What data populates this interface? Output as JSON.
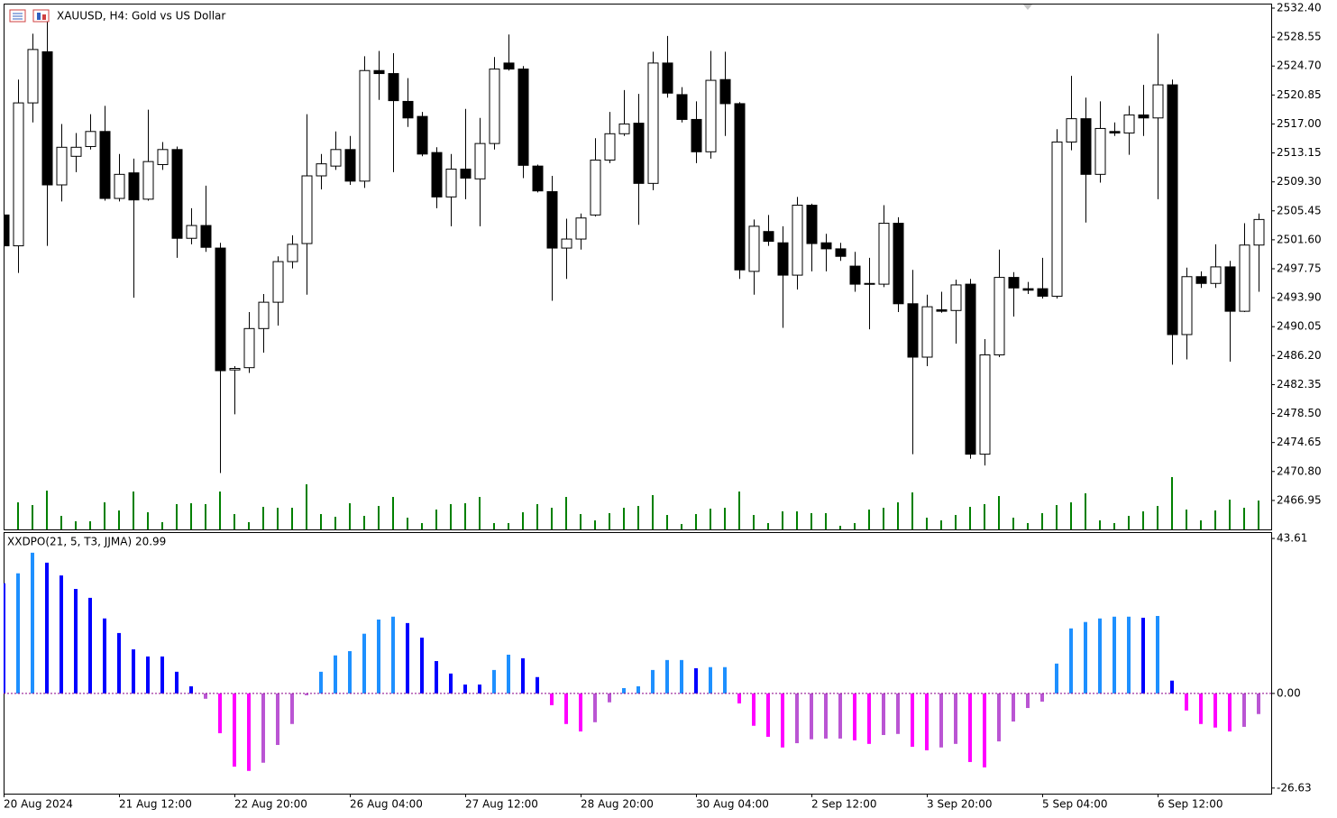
{
  "chart_data": [
    {
      "type": "candlestick",
      "title": "XAUUSD, H4:  Gold vs US Dollar",
      "categories": [
        "20 Aug 2024",
        null,
        null,
        null,
        null,
        null,
        null,
        null,
        "21 Aug 12:00",
        null,
        null,
        null,
        null,
        null,
        null,
        null,
        "22 Aug 20:00",
        null,
        null,
        null,
        null,
        null,
        null,
        null,
        "26 Aug 04:00",
        null,
        null,
        null,
        null,
        null,
        null,
        null,
        "27 Aug 12:00",
        null,
        null,
        null,
        null,
        null,
        null,
        null,
        "28 Aug 20:00",
        null,
        null,
        null,
        null,
        null,
        null,
        null,
        "30 Aug 04:00",
        null,
        null,
        null,
        null,
        null,
        null,
        null,
        "2 Sep 12:00",
        null,
        null,
        null,
        null,
        null,
        null,
        null,
        "3 Sep 20:00",
        null,
        null,
        null,
        null,
        null,
        null,
        null,
        "5 Sep 04:00",
        null,
        null,
        null,
        null,
        null,
        null,
        null,
        "6 Sep 12:00",
        null,
        null,
        null,
        null,
        null,
        null,
        null
      ],
      "open": [
        2504.9,
        2500.8,
        2519.8,
        2526.6,
        2508.9,
        2512.7,
        2514.0,
        2516.0,
        2507.1,
        2510.5,
        2507.0,
        2511.6,
        2513.6,
        2501.8,
        2503.5,
        2500.5,
        2484.3,
        2484.6,
        2489.8,
        2493.3,
        2498.7,
        2501.1,
        2510.1,
        2511.4,
        2513.6,
        2509.4,
        2524.1,
        2523.7,
        2520.0,
        2518.0,
        2513.2,
        2507.3,
        2511.0,
        2509.7,
        2514.4,
        2525.1,
        2524.3,
        2511.4,
        2508.0,
        2500.5,
        2501.7,
        2504.9,
        2512.2,
        2515.7,
        2517.1,
        2509.1,
        2525.1,
        2520.9,
        2517.6,
        2513.3,
        2522.9,
        2519.7,
        2497.4,
        2502.7,
        2501.2,
        2496.9,
        2506.2,
        2501.2,
        2500.4,
        2498.1,
        2495.8,
        2495.7,
        2503.8,
        2493.1,
        2486.0,
        2492.3,
        2492.2,
        2495.7,
        2473.1,
        2486.3,
        2496.6,
        2495.1,
        2495.1,
        2494.1,
        2514.6,
        2517.7,
        2510.3,
        2516.0,
        2515.8,
        2518.2,
        2517.8,
        2522.2,
        2489.0,
        2496.7,
        2495.8,
        2498.0,
        2492.1,
        2500.9
      ],
      "high": [
        2505.8,
        2522.9,
        2529.0,
        2530.8,
        2517.0,
        2515.8,
        2518.3,
        2519.4,
        2513.0,
        2512.4,
        2518.9,
        2514.6,
        2514.0,
        2505.8,
        2508.8,
        2501.2,
        2484.8,
        2492.0,
        2494.4,
        2499.4,
        2502.2,
        2518.3,
        2513.0,
        2516.0,
        2515.4,
        2526.0,
        2526.7,
        2526.4,
        2523.1,
        2518.6,
        2513.9,
        2513.0,
        2519.0,
        2517.8,
        2525.9,
        2528.9,
        2524.7,
        2511.6,
        2510.1,
        2504.4,
        2505.1,
        2515.1,
        2518.6,
        2521.5,
        2521.0,
        2526.6,
        2528.7,
        2521.9,
        2520.0,
        2526.7,
        2526.6,
        2519.9,
        2504.3,
        2504.9,
        2503.4,
        2507.3,
        2506.4,
        2502.4,
        2501.2,
        2500.0,
        2499.2,
        2506.2,
        2504.6,
        2497.6,
        2494.3,
        2494.7,
        2496.3,
        2496.4,
        2488.4,
        2500.3,
        2497.3,
        2496.0,
        2499.2,
        2516.3,
        2523.4,
        2520.5,
        2520.0,
        2517.2,
        2519.4,
        2522.2,
        2529.0,
        2522.9,
        2497.9,
        2497.4,
        2501.0,
        2498.8,
        2503.8,
        2505.1
      ],
      "low": [
        2500.4,
        2497.2,
        2517.2,
        2500.8,
        2506.7,
        2510.6,
        2513.6,
        2506.8,
        2506.7,
        2493.9,
        2506.8,
        2510.9,
        2499.2,
        2501.0,
        2500.0,
        2470.6,
        2478.4,
        2483.9,
        2486.6,
        2490.2,
        2497.8,
        2494.3,
        2508.3,
        2510.9,
        2508.9,
        2508.5,
        2520.2,
        2510.6,
        2516.6,
        2512.7,
        2505.8,
        2503.4,
        2507.0,
        2503.4,
        2513.6,
        2524.1,
        2509.8,
        2507.9,
        2493.5,
        2496.4,
        2500.3,
        2504.7,
        2511.8,
        2515.4,
        2503.6,
        2508.2,
        2520.5,
        2517.2,
        2511.8,
        2512.4,
        2515.4,
        2496.4,
        2494.3,
        2500.8,
        2489.9,
        2495.0,
        2497.4,
        2497.4,
        2498.8,
        2494.7,
        2489.7,
        2495.3,
        2492.0,
        2473.1,
        2484.8,
        2491.9,
        2487.8,
        2472.5,
        2471.6,
        2486.0,
        2491.4,
        2494.4,
        2493.8,
        2493.8,
        2513.5,
        2503.9,
        2509.2,
        2515.4,
        2512.9,
        2515.4,
        2507.0,
        2485.0,
        2485.7,
        2495.2,
        2495.2,
        2485.4,
        2492.0,
        2494.7
      ],
      "close": [
        2500.8,
        2519.8,
        2526.9,
        2508.9,
        2513.9,
        2513.9,
        2516.0,
        2507.1,
        2510.3,
        2506.9,
        2512.0,
        2513.6,
        2501.8,
        2503.5,
        2500.6,
        2484.2,
        2484.5,
        2489.8,
        2493.3,
        2498.7,
        2501.0,
        2510.1,
        2511.7,
        2513.6,
        2509.4,
        2524.1,
        2523.7,
        2520.1,
        2517.8,
        2513.0,
        2507.3,
        2511.0,
        2509.8,
        2514.4,
        2524.3,
        2524.3,
        2511.5,
        2508.1,
        2500.5,
        2501.7,
        2504.5,
        2512.2,
        2515.7,
        2517.0,
        2509.1,
        2525.1,
        2521.1,
        2517.6,
        2513.3,
        2522.8,
        2519.7,
        2497.6,
        2503.4,
        2501.4,
        2496.9,
        2506.2,
        2501.1,
        2500.4,
        2499.4,
        2495.7,
        2495.7,
        2503.8,
        2493.1,
        2486.0,
        2492.7,
        2492.1,
        2495.6,
        2473.1,
        2486.3,
        2496.6,
        2495.2,
        2494.9,
        2494.1,
        2514.6,
        2517.7,
        2510.3,
        2516.4,
        2515.8,
        2518.2,
        2517.8,
        2522.2,
        2489.0,
        2496.7,
        2495.8,
        2498.0,
        2492.1,
        2500.9,
        2504.3
      ],
      "volumes": [
        null,
        30,
        27,
        43,
        15,
        9,
        9,
        30,
        21,
        42,
        19,
        8,
        28,
        29,
        28,
        42,
        17,
        8,
        25,
        24,
        24,
        50,
        17,
        14,
        29,
        15,
        26,
        36,
        13,
        7,
        22,
        28,
        29,
        36,
        7,
        7,
        19,
        28,
        24,
        36,
        17,
        10,
        18,
        24,
        26,
        38,
        16,
        6,
        17,
        23,
        24,
        42,
        16,
        7,
        20,
        20,
        18,
        18,
        4,
        7,
        22,
        24,
        30,
        41,
        13,
        10,
        16,
        25,
        28,
        37,
        13,
        7,
        18,
        27,
        30,
        40,
        10,
        7,
        15,
        20,
        26,
        58,
        22,
        10,
        21,
        33,
        24,
        32
      ],
      "volume_lim": [
        0,
        100
      ],
      "up_color": "#ffffff",
      "down_color": "#000000",
      "wick_color": "#000000",
      "volume_color": "#008000",
      "ylim": [
        2463.1,
        2533.0
      ],
      "yticks": [
        {
          "value": 2532.4,
          "label": "2532.40"
        },
        2528.55,
        {
          "value": 2524.7,
          "label": "2524.70"
        },
        2520.85,
        {
          "value": 2517,
          "label": "2517.00"
        },
        2513.15,
        {
          "value": 2509.3,
          "label": "2509.30"
        },
        2505.45,
        {
          "value": 2501.6,
          "label": "2501.60"
        },
        2497.75,
        {
          "value": 2493.9,
          "label": "2493.90"
        },
        2490.05,
        {
          "value": 2486.2,
          "label": "2486.20"
        },
        2482.35,
        {
          "value": 2478.5,
          "label": "2478.50"
        },
        2474.65,
        {
          "value": 2470.8,
          "label": "2470.80"
        },
        2466.95
      ]
    },
    {
      "type": "bar",
      "title": "XXDPO(21, 5, T3, JJMA) 20.99",
      "values": [
        31.0,
        33.8,
        39.6,
        36.8,
        33.2,
        29.4,
        26.9,
        21.1,
        17.0,
        12.4,
        10.4,
        10.4,
        6.1,
        2.0,
        -1.5,
        -11.2,
        -20.6,
        -21.8,
        -19.5,
        -14.5,
        -8.6,
        -0.5,
        6.1,
        10.7,
        11.9,
        16.8,
        20.8,
        21.6,
        19.8,
        15.7,
        9.1,
        5.6,
        2.5,
        2.5,
        6.6,
        10.9,
        9.9,
        4.6,
        -3.3,
        -8.6,
        -10.7,
        -8.1,
        -2.5,
        1.5,
        2.0,
        6.6,
        9.4,
        9.4,
        7.1,
        7.4,
        7.4,
        -2.8,
        -9.1,
        -12.2,
        -15.2,
        -14.0,
        -12.9,
        -12.7,
        -12.7,
        -13.2,
        -14.2,
        -11.7,
        -11.4,
        -15.0,
        -16.0,
        -15.2,
        -14.2,
        -19.3,
        -20.8,
        -13.5,
        -7.9,
        -4.1,
        -2.3,
        8.4,
        18.3,
        20.1,
        21.1,
        21.6,
        21.6,
        21.3,
        21.8,
        3.6,
        -4.8,
        -8.6,
        -9.6,
        -10.7,
        -9.4,
        -5.8
      ],
      "colors": [
        "#0000ff",
        "#1e90ff",
        "#1e90ff",
        "#0000ff",
        "#0000ff",
        "#0000ff",
        "#0000ff",
        "#0000ff",
        "#0000ff",
        "#0000ff",
        "#0000ff",
        "#0000ff",
        "#0000ff",
        "#0000ff",
        "#ba55d3",
        "#ff00ff",
        "#ff00ff",
        "#ff00ff",
        "#ba55d3",
        "#ba55d3",
        "#ba55d3",
        "#ba55d3",
        "#1e90ff",
        "#1e90ff",
        "#1e90ff",
        "#1e90ff",
        "#1e90ff",
        "#1e90ff",
        "#0000ff",
        "#0000ff",
        "#0000ff",
        "#0000ff",
        "#0000ff",
        "#0000ff",
        "#1e90ff",
        "#1e90ff",
        "#0000ff",
        "#0000ff",
        "#ff00ff",
        "#ff00ff",
        "#ff00ff",
        "#ba55d3",
        "#ba55d3",
        "#1e90ff",
        "#1e90ff",
        "#1e90ff",
        "#1e90ff",
        "#1e90ff",
        "#0000ff",
        "#1e90ff",
        "#1e90ff",
        "#ff00ff",
        "#ff00ff",
        "#ff00ff",
        "#ff00ff",
        "#ba55d3",
        "#ba55d3",
        "#ba55d3",
        "#ba55d3",
        "#ff00ff",
        "#ff00ff",
        "#ba55d3",
        "#ba55d3",
        "#ff00ff",
        "#ff00ff",
        "#ba55d3",
        "#ba55d3",
        "#ff00ff",
        "#ff00ff",
        "#ba55d3",
        "#ba55d3",
        "#ba55d3",
        "#ba55d3",
        "#1e90ff",
        "#1e90ff",
        "#1e90ff",
        "#1e90ff",
        "#1e90ff",
        "#1e90ff",
        "#0000ff",
        "#1e90ff",
        "#0000ff",
        "#ff00ff",
        "#ff00ff",
        "#ff00ff",
        "#ff00ff",
        "#ba55d3",
        "#ba55d3"
      ],
      "zero_line": true,
      "zero_line_color": "#8b008b",
      "ylim": [
        -28.2,
        45.4
      ],
      "yticks": [
        43.61,
        {
          "value": 0,
          "label": "0.00"
        },
        -26.63
      ]
    }
  ]
}
